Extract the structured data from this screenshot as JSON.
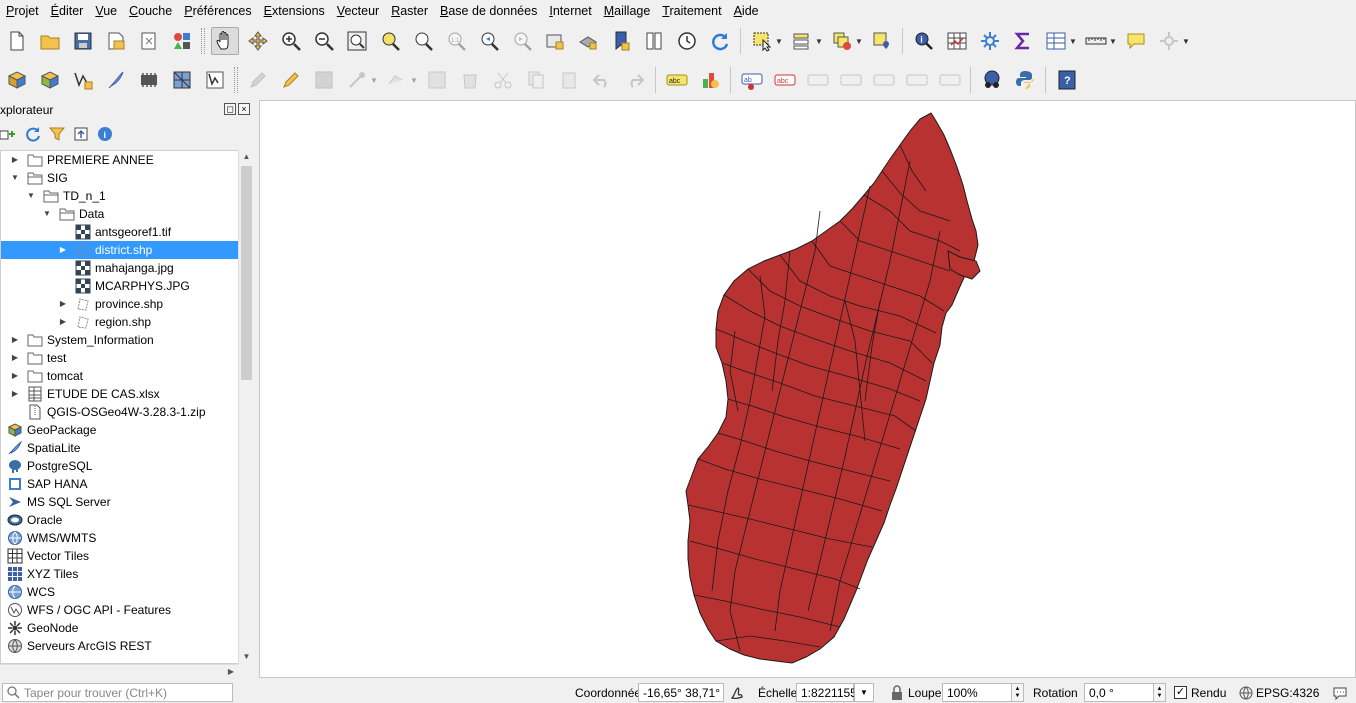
{
  "menubar": {
    "items": [
      {
        "label": "Projet",
        "u": "P",
        "rest": "rojet"
      },
      {
        "label": "Éditer",
        "u": "É",
        "rest": "diter"
      },
      {
        "label": "Vue",
        "u": "V",
        "rest": "ue"
      },
      {
        "label": "Couche",
        "u": "C",
        "rest": "ouche"
      },
      {
        "label": "Préférences",
        "u": "P",
        "rest": "références"
      },
      {
        "label": "Extensions",
        "u": "E",
        "rest": "xtensions"
      },
      {
        "label": "Vecteur",
        "u": "V",
        "rest": "ecteur"
      },
      {
        "label": "Raster",
        "u": "R",
        "rest": "aster"
      },
      {
        "label": "Base de données",
        "u": "B",
        "rest": "ase de données"
      },
      {
        "label": "Internet",
        "u": "I",
        "rest": "nternet"
      },
      {
        "label": "Maillage",
        "u": "M",
        "rest": "aillage"
      },
      {
        "label": "Traitement",
        "u": "T",
        "rest": "raitement"
      },
      {
        "label": "Aide",
        "u": "A",
        "rest": "ide"
      }
    ]
  },
  "browser": {
    "title": "xplorateur",
    "tree": [
      {
        "label": "PREMIERE ANNEE",
        "level": 0,
        "arrow": "right",
        "icon": "folder-icon"
      },
      {
        "label": "SIG",
        "level": 0,
        "arrow": "down",
        "icon": "folder-open-icon"
      },
      {
        "label": "TD_n_1",
        "level": 1,
        "arrow": "down",
        "icon": "folder-open-icon"
      },
      {
        "label": "Data",
        "level": 2,
        "arrow": "down",
        "icon": "folder-open-icon"
      },
      {
        "label": "antsgeoref1.tif",
        "level": 3,
        "arrow": "none",
        "icon": "raster-icon"
      },
      {
        "label": "district.shp",
        "level": 3,
        "arrow": "right",
        "icon": "vector-polygon-icon",
        "selected": true
      },
      {
        "label": "mahajanga.jpg",
        "level": 3,
        "arrow": "none",
        "icon": "raster-icon"
      },
      {
        "label": "MCARPHYS.JPG",
        "level": 3,
        "arrow": "none",
        "icon": "raster-icon"
      },
      {
        "label": "province.shp",
        "level": 3,
        "arrow": "right",
        "icon": "vector-polygon-icon"
      },
      {
        "label": "region.shp",
        "level": 3,
        "arrow": "right",
        "icon": "vector-polygon-icon"
      },
      {
        "label": "System_Information",
        "level": 0,
        "arrow": "right",
        "icon": "folder-icon"
      },
      {
        "label": "test",
        "level": 0,
        "arrow": "right",
        "icon": "folder-icon"
      },
      {
        "label": "tomcat",
        "level": 0,
        "arrow": "right",
        "icon": "folder-icon"
      },
      {
        "label": "ETUDE DE CAS.xlsx",
        "level": 0,
        "arrow": "right",
        "icon": "spreadsheet-icon"
      },
      {
        "label": "QGIS-OSGeo4W-3.28.3-1.zip",
        "level": 0,
        "arrow": "none",
        "icon": "zip-icon"
      },
      {
        "label": "GeoPackage",
        "level": -1,
        "arrow": "none",
        "icon": "geopackage-icon"
      },
      {
        "label": "SpatiaLite",
        "level": -1,
        "arrow": "none",
        "icon": "spatialite-icon"
      },
      {
        "label": "PostgreSQL",
        "level": -1,
        "arrow": "none",
        "icon": "postgresql-icon"
      },
      {
        "label": "SAP HANA",
        "level": -1,
        "arrow": "none",
        "icon": "sap-hana-icon"
      },
      {
        "label": "MS SQL Server",
        "level": -1,
        "arrow": "none",
        "icon": "mssql-icon"
      },
      {
        "label": "Oracle",
        "level": -1,
        "arrow": "none",
        "icon": "oracle-icon"
      },
      {
        "label": "WMS/WMTS",
        "level": -1,
        "arrow": "none",
        "icon": "wms-icon"
      },
      {
        "label": "Vector Tiles",
        "level": -1,
        "arrow": "none",
        "icon": "vector-tiles-icon"
      },
      {
        "label": "XYZ Tiles",
        "level": -1,
        "arrow": "none",
        "icon": "xyz-tiles-icon"
      },
      {
        "label": "WCS",
        "level": -1,
        "arrow": "none",
        "icon": "wcs-icon"
      },
      {
        "label": "WFS / OGC API - Features",
        "level": -1,
        "arrow": "none",
        "icon": "wfs-icon"
      },
      {
        "label": "GeoNode",
        "level": -1,
        "arrow": "none",
        "icon": "geonode-icon"
      },
      {
        "label": "Serveurs ArcGIS REST",
        "level": -1,
        "arrow": "none",
        "icon": "arcgis-icon"
      }
    ]
  },
  "statusbar": {
    "locator_placeholder": "Taper pour trouver (Ctrl+K)",
    "coord_label": "Coordonnée",
    "coord_value": "-16,65° 38,71°",
    "scale_label": "Échelle",
    "scale_value": "1:8221155",
    "magnifier_label": "Loupe",
    "magnifier_value": "100%",
    "rotation_label": "Rotation",
    "rotation_value": "0,0 °",
    "render_label": "Rendu",
    "crs": "EPSG:4326"
  },
  "map": {
    "fill_color": "#b83232",
    "stroke_color": "#1a1a1a"
  }
}
